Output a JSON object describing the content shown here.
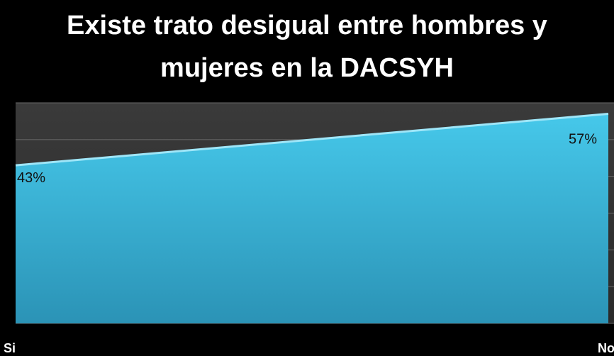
{
  "chart_data": {
    "type": "area",
    "title": "Existe trato desigual entre hombres y mujeres en la DACSYH",
    "categories": [
      "Si",
      "No"
    ],
    "values": [
      43,
      57
    ],
    "value_labels": [
      "43%",
      "57%"
    ],
    "color": "#3ec3e6",
    "ylim": [
      0,
      60
    ],
    "yticks": [
      0,
      10,
      20,
      30,
      40,
      50,
      60
    ],
    "grid": true
  }
}
